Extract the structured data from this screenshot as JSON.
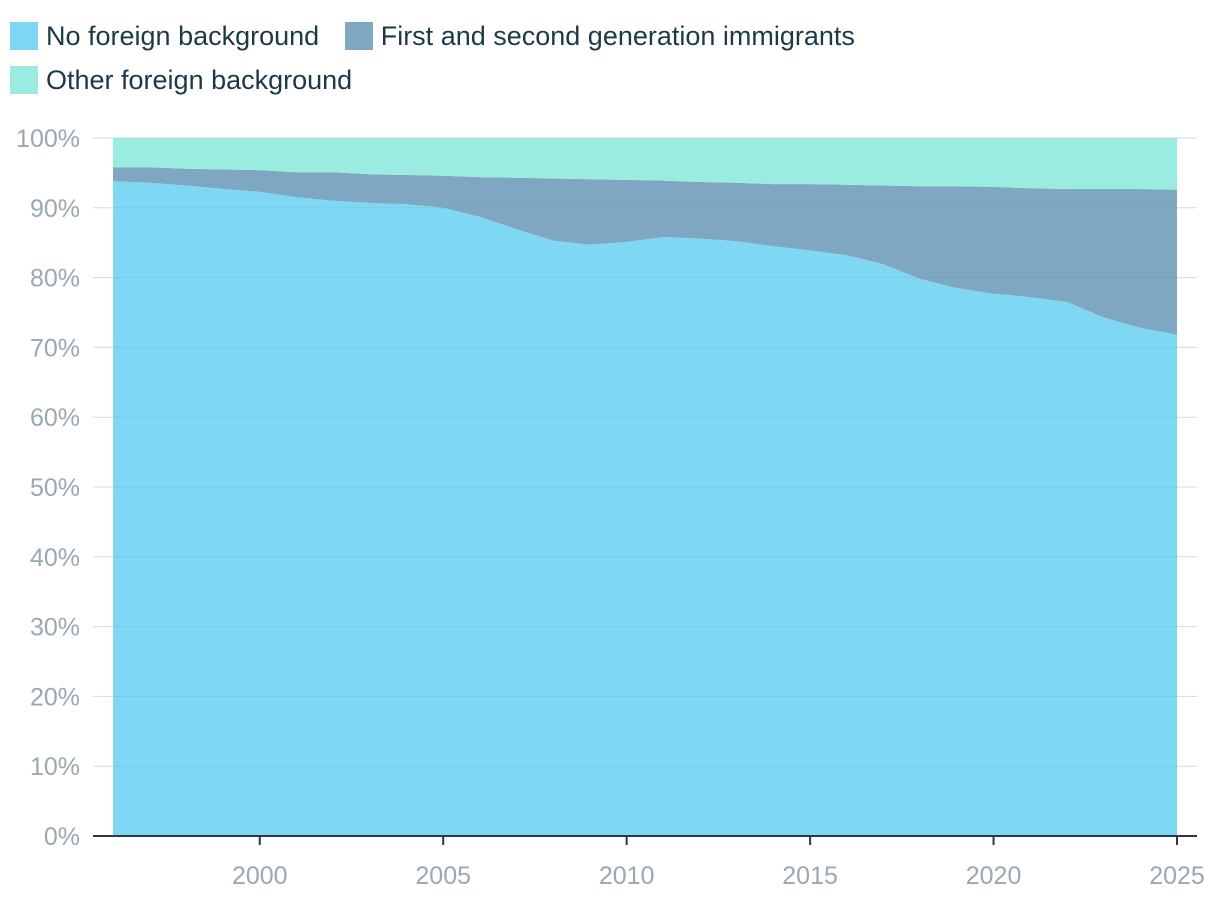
{
  "legend": [
    {
      "label": "No foreign background",
      "color": "#7fd8f3"
    },
    {
      "label": "First and second generation immigrants",
      "color": "#7fa7c1"
    },
    {
      "label": "Other foreign background",
      "color": "#9bece0"
    }
  ],
  "chart_data": {
    "type": "area",
    "stacked": true,
    "x": [
      1996,
      1997,
      1998,
      1999,
      2000,
      2001,
      2002,
      2003,
      2004,
      2005,
      2006,
      2007,
      2008,
      2009,
      2010,
      2011,
      2012,
      2013,
      2014,
      2015,
      2016,
      2017,
      2018,
      2019,
      2020,
      2021,
      2022,
      2023,
      2024,
      2025
    ],
    "series": [
      {
        "name": "No foreign background",
        "color": "#7fd8f3",
        "values": [
          93.8,
          93.6,
          93.2,
          92.7,
          92.3,
          91.5,
          91.0,
          90.7,
          90.5,
          90.0,
          88.7,
          86.9,
          85.3,
          84.7,
          85.1,
          85.8,
          85.6,
          85.2,
          84.5,
          83.9,
          83.2,
          81.9,
          79.8,
          78.5,
          77.7,
          77.2,
          76.5,
          74.3,
          72.8,
          71.8
        ]
      },
      {
        "name": "First and second generation immigrants",
        "color": "#7fa7c1",
        "values": [
          2.0,
          2.2,
          2.4,
          2.8,
          3.1,
          3.6,
          4.1,
          4.1,
          4.2,
          4.6,
          5.7,
          7.4,
          8.9,
          9.4,
          8.9,
          8.1,
          8.1,
          8.4,
          8.9,
          9.5,
          10.1,
          11.3,
          13.3,
          14.6,
          15.3,
          15.6,
          16.2,
          18.4,
          19.9,
          20.8
        ]
      },
      {
        "name": "Other foreign background",
        "color": "#9bece0",
        "values": [
          4.2,
          4.2,
          4.4,
          4.5,
          4.6,
          4.9,
          4.9,
          5.2,
          5.3,
          5.4,
          5.6,
          5.7,
          5.8,
          5.9,
          6.0,
          6.1,
          6.3,
          6.4,
          6.6,
          6.6,
          6.7,
          6.8,
          6.9,
          6.9,
          7.0,
          7.2,
          7.3,
          7.3,
          7.3,
          7.4
        ]
      }
    ],
    "ylim": [
      0,
      100
    ],
    "y_ticks": [
      "0%",
      "10%",
      "20%",
      "30%",
      "40%",
      "50%",
      "60%",
      "70%",
      "80%",
      "90%",
      "100%"
    ],
    "x_ticks": [
      "2000",
      "2005",
      "2010",
      "2015",
      "2020",
      "2025"
    ],
    "xlim": [
      1996,
      2025
    ],
    "grid": true,
    "legend_position": "top-left"
  }
}
